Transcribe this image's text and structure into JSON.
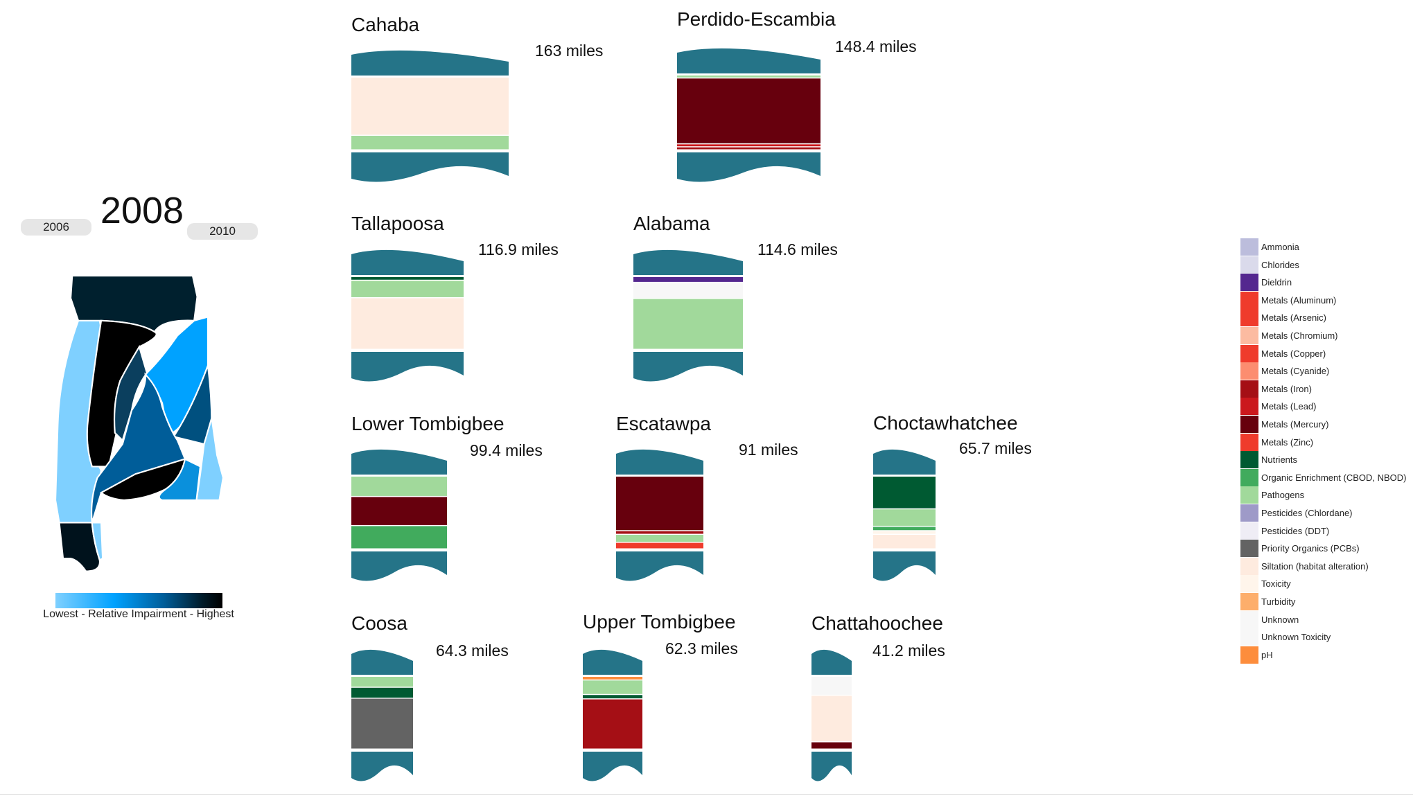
{
  "nav": {
    "year": "2008",
    "prev_year": "2006",
    "next_year": "2010"
  },
  "map": {
    "legend_label": "Lowest - Relative Impairment - Highest",
    "colors": {
      "low": "#7fd0ff",
      "mid": "#00a2ff",
      "high": "#000000"
    }
  },
  "legend": {
    "items": [
      {
        "label": "Ammonia",
        "color": "#bcbddc"
      },
      {
        "label": "Chlorides",
        "color": "#dadaeb"
      },
      {
        "label": "Dieldrin",
        "color": "#54278f"
      },
      {
        "label": "Metals (Aluminum)",
        "color": "#ef3b2c"
      },
      {
        "label": "Metals (Arsenic)",
        "color": "#ef3b2c"
      },
      {
        "label": "Metals (Chromium)",
        "color": "#fcbba1"
      },
      {
        "label": "Metals (Copper)",
        "color": "#ef3b2c"
      },
      {
        "label": "Metals (Cyanide)",
        "color": "#fc8d70"
      },
      {
        "label": "Metals (Iron)",
        "color": "#a50f15"
      },
      {
        "label": "Metals (Lead)",
        "color": "#cb181d"
      },
      {
        "label": "Metals (Mercury)",
        "color": "#67000d"
      },
      {
        "label": "Metals (Zinc)",
        "color": "#ef3b2c"
      },
      {
        "label": "Nutrients",
        "color": "#005a32"
      },
      {
        "label": "Organic Enrichment (CBOD, NBOD)",
        "color": "#41ab5d"
      },
      {
        "label": "Pathogens",
        "color": "#a1d99b"
      },
      {
        "label": "Pesticides (Chlordane)",
        "color": "#9e9ac8"
      },
      {
        "label": "Pesticides (DDT)",
        "color": "#efedf5"
      },
      {
        "label": "Priority Organics (PCBs)",
        "color": "#636363"
      },
      {
        "label": "Siltation (habitat alteration)",
        "color": "#feebdf"
      },
      {
        "label": "Toxicity",
        "color": "#fff5eb"
      },
      {
        "label": "Turbidity",
        "color": "#fdae6b"
      },
      {
        "label": "Unknown",
        "color": "#f7f7f7"
      },
      {
        "label": "Unknown Toxicity",
        "color": "#f7f7f7"
      },
      {
        "label": "pH",
        "color": "#fd8d3c"
      }
    ]
  },
  "basins": [
    {
      "name": "Cahaba",
      "miles": "163 miles",
      "segments": [
        {
          "cause": "Siltation (habitat alteration)",
          "share": 0.8
        },
        {
          "cause": "Pathogens",
          "share": 0.2
        }
      ]
    },
    {
      "name": "Perdido-Escambia",
      "miles": "148.4 miles",
      "segments": [
        {
          "cause": "Pathogens",
          "share": 0.04
        },
        {
          "cause": "Metals (Mercury)",
          "share": 0.88
        },
        {
          "cause": "Metals (Lead)",
          "share": 0.04
        },
        {
          "cause": "Metals (Iron)",
          "share": 0.04
        }
      ]
    },
    {
      "name": "Tallapoosa",
      "miles": "116.9 miles",
      "segments": [
        {
          "cause": "Nutrients",
          "share": 0.05
        },
        {
          "cause": "Pathogens",
          "share": 0.24
        },
        {
          "cause": "Siltation (habitat alteration)",
          "share": 0.71
        }
      ]
    },
    {
      "name": "Alabama",
      "miles": "114.6 miles",
      "segments": [
        {
          "cause": "Dieldrin",
          "share": 0.08
        },
        {
          "cause": "Unknown",
          "share": 0.22
        },
        {
          "cause": "Pathogens",
          "share": 0.7
        }
      ]
    },
    {
      "name": "Lower Tombigbee",
      "miles": "99.4 miles",
      "segments": [
        {
          "cause": "Pathogens",
          "share": 0.28
        },
        {
          "cause": "Metals (Mercury)",
          "share": 0.4
        },
        {
          "cause": "Organic Enrichment (CBOD, NBOD)",
          "share": 0.32
        }
      ]
    },
    {
      "name": "Escatawpa",
      "miles": "91 miles",
      "segments": [
        {
          "cause": "Metals (Mercury)",
          "share": 0.75
        },
        {
          "cause": "Metals (Iron)",
          "share": 0.05
        },
        {
          "cause": "Pathogens",
          "share": 0.11
        },
        {
          "cause": "Metals (Zinc)",
          "share": 0.09
        }
      ]
    },
    {
      "name": "Choctawhatchee",
      "miles": "65.7 miles",
      "segments": [
        {
          "cause": "Nutrients",
          "share": 0.45
        },
        {
          "cause": "Pathogens",
          "share": 0.24
        },
        {
          "cause": "Organic Enrichment (CBOD, NBOD)",
          "share": 0.06
        },
        {
          "cause": "Toxicity",
          "share": 0.05
        },
        {
          "cause": "Siltation (habitat alteration)",
          "share": 0.2
        }
      ]
    },
    {
      "name": "Coosa",
      "miles": "64.3 miles",
      "segments": [
        {
          "cause": "Pathogens",
          "share": 0.15
        },
        {
          "cause": "Nutrients",
          "share": 0.15
        },
        {
          "cause": "Priority Organics (PCBs)",
          "share": 0.7
        }
      ]
    },
    {
      "name": "Upper Tombigbee",
      "miles": "62.3 miles",
      "segments": [
        {
          "cause": "pH",
          "share": 0.05
        },
        {
          "cause": "Pathogens",
          "share": 0.2
        },
        {
          "cause": "Nutrients",
          "share": 0.06
        },
        {
          "cause": "Metals (Iron)",
          "share": 0.69
        }
      ]
    },
    {
      "name": "Chattahoochee",
      "miles": "41.2 miles",
      "segments": [
        {
          "cause": "Unknown",
          "share": 0.26
        },
        {
          "cause": "Siltation (habitat alteration)",
          "share": 0.64
        },
        {
          "cause": "Metals (Mercury)",
          "share": 0.1
        }
      ]
    }
  ]
}
